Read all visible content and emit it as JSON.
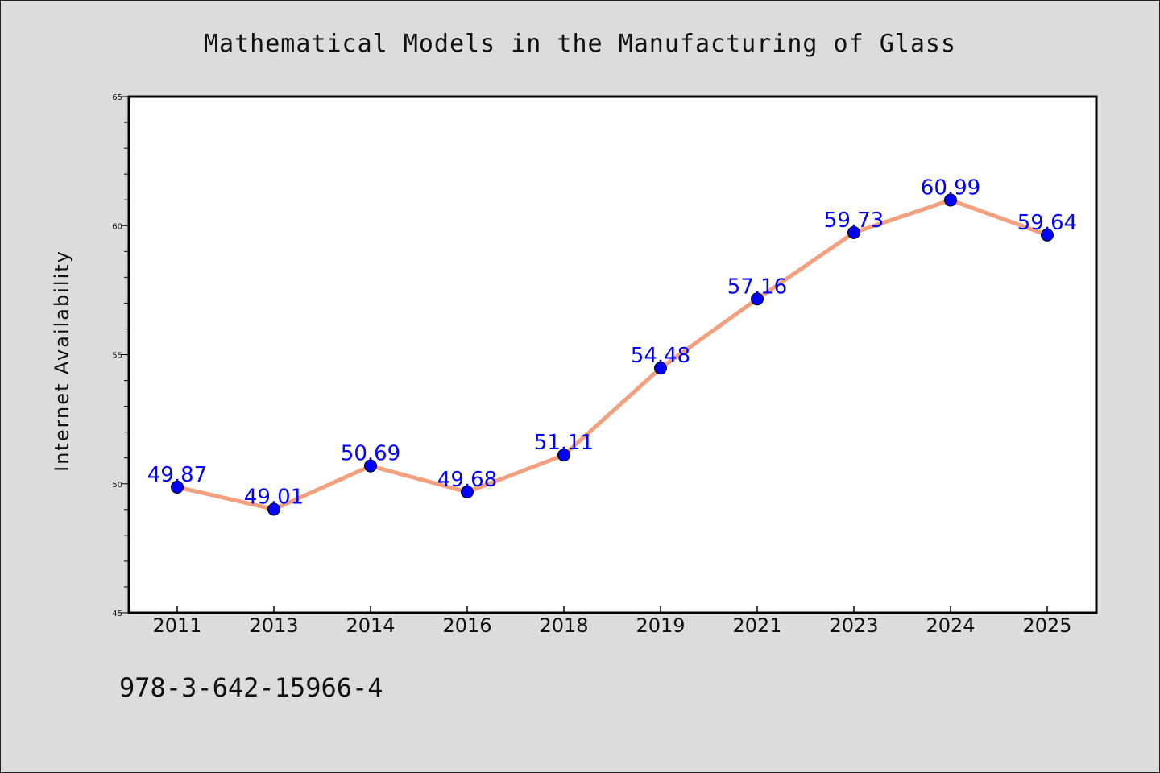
{
  "chart_data": {
    "type": "line",
    "title": "Mathematical Models in the Manufacturing of Glass",
    "xlabel": "",
    "ylabel": "Internet Availability",
    "categories": [
      "2011",
      "2013",
      "2014",
      "2016",
      "2018",
      "2019",
      "2021",
      "2023",
      "2024",
      "2025"
    ],
    "series": [
      {
        "values": [
          49.87,
          49.01,
          50.69,
          49.68,
          51.11,
          54.48,
          57.16,
          59.73,
          60.99,
          59.64
        ]
      }
    ],
    "data_labels": [
      "49.87",
      "49.01",
      "50.69",
      "49.68",
      "51.11",
      "54.48",
      "57.16",
      "59.73",
      "60.99",
      "59.64"
    ],
    "ylim": [
      45,
      65
    ],
    "yticks": [
      "45",
      "50",
      "55",
      "60",
      "65"
    ],
    "grid": false,
    "legend": "none",
    "colors": {
      "line": "#f4a07e",
      "marker": "#0000ff",
      "label": "#0000ff",
      "background": "#dcdcdc",
      "plot_background": "#ffffff"
    }
  },
  "footer": {
    "isbn": "978-3-642-15966-4"
  }
}
